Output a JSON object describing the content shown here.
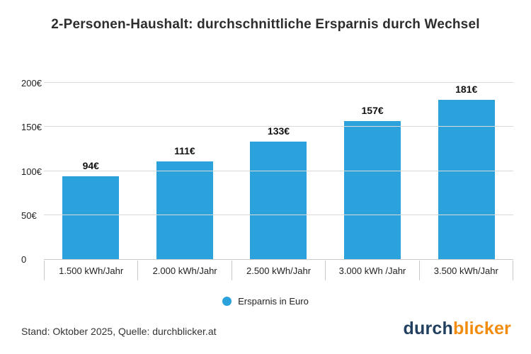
{
  "title": "2-Personen-Haushalt: durchschnittliche Ersparnis durch Wechsel",
  "chart_data": {
    "type": "bar",
    "categories": [
      "1.500 kWh/Jahr",
      "2.000 kWh/Jahr",
      "2.500 kWh/Jahr",
      "3.000 kWh /Jahr",
      "3.500 kWh/Jahr"
    ],
    "values": [
      94,
      111,
      133,
      157,
      181
    ],
    "value_labels": [
      "94€",
      "111€",
      "133€",
      "157€",
      "181€"
    ],
    "ylim": [
      0,
      200
    ],
    "yticks": [
      0,
      50,
      100,
      150,
      200
    ],
    "ytick_labels": [
      "0",
      "50€",
      "100€",
      "150€",
      "200€"
    ],
    "bar_color": "#2BA2DC",
    "grid": true,
    "legend_position": "bottom",
    "legend": "Ersparnis in Euro",
    "title": "2-Personen-Haushalt: durchschnittliche Ersparnis durch Wechsel",
    "xlabel": "",
    "ylabel": ""
  },
  "legend": {
    "label": "Ersparnis in Euro"
  },
  "footer": {
    "source": "Stand: Oktober 2025, Quelle: durchblicker.at"
  },
  "logo": {
    "part1": "durch",
    "part2": "blicker",
    "color1": "#22405F",
    "color2": "#F28C0F"
  }
}
